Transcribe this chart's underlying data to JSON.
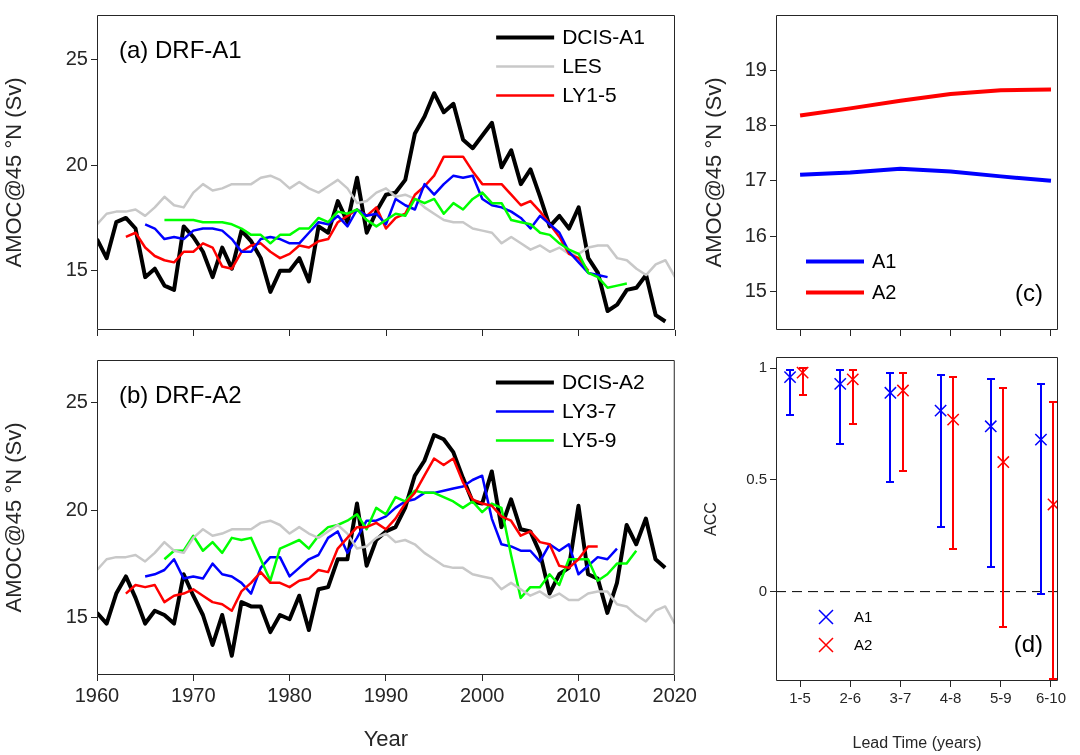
{
  "chart_data": [
    {
      "type": "line",
      "title": "(a) DRF-A1",
      "ylabel": "AMOC@45 °N (Sv)",
      "xlim": [
        1960,
        2020
      ],
      "xticks": [
        1960,
        1970,
        1980,
        1990,
        2000,
        2010,
        2020
      ],
      "ylim": [
        12.2,
        27.1
      ],
      "yticks": [
        15,
        20,
        25
      ],
      "tick_labels": "y",
      "legend": "top right",
      "x": [
        1960,
        1961,
        1962,
        1963,
        1964,
        1965,
        1966,
        1967,
        1968,
        1969,
        1970,
        1971,
        1972,
        1973,
        1974,
        1975,
        1976,
        1977,
        1978,
        1979,
        1980,
        1981,
        1982,
        1983,
        1984,
        1985,
        1986,
        1987,
        1988,
        1989,
        1990,
        1991,
        1992,
        1993,
        1994,
        1995,
        1996,
        1997,
        1998,
        1999,
        2000,
        2001,
        2002,
        2003,
        2004,
        2005,
        2006,
        2007,
        2008,
        2009,
        2010,
        2011,
        2012,
        2013,
        2014,
        2015,
        2016,
        2017,
        2018,
        2019,
        2020
      ],
      "series": [
        {
          "name": "DCIS-A1",
          "color": "#000000",
          "values": [
            16.5,
            15.6,
            17.3,
            17.5,
            17.0,
            14.7,
            15.1,
            14.3,
            14.1,
            17.1,
            16.6,
            15.9,
            14.7,
            16.1,
            15.1,
            16.9,
            16.4,
            15.6,
            14.0,
            15.0,
            15.0,
            15.6,
            14.5,
            17.1,
            16.8,
            18.3,
            17.3,
            19.4,
            16.8,
            17.8,
            18.6,
            18.7,
            19.3,
            21.5,
            22.3,
            23.4,
            22.5,
            22.9,
            21.2,
            20.8,
            21.4,
            22.0,
            19.9,
            20.7,
            19.1,
            19.8,
            18.5,
            17.1,
            17.6,
            17.0,
            18.0,
            15.6,
            14.9,
            13.1,
            13.4,
            14.1,
            14.2,
            14.8,
            12.9,
            12.6,
            null
          ]
        },
        {
          "name": "LES",
          "color": "#c8c8c8",
          "values": [
            17.2,
            17.7,
            17.8,
            17.8,
            17.9,
            17.6,
            18.0,
            18.5,
            18.1,
            18.0,
            18.7,
            19.1,
            18.8,
            18.9,
            19.1,
            19.1,
            19.1,
            19.4,
            19.5,
            19.3,
            18.9,
            19.2,
            18.9,
            18.7,
            19.0,
            19.3,
            18.9,
            18.2,
            18.3,
            18.7,
            18.9,
            18.5,
            18.6,
            18.4,
            18.0,
            17.7,
            17.4,
            17.3,
            17.3,
            17.0,
            16.9,
            16.8,
            16.3,
            16.6,
            16.3,
            16.0,
            16.2,
            15.9,
            16.1,
            15.8,
            15.8,
            16.1,
            16.2,
            16.2,
            15.6,
            15.5,
            15.1,
            14.8,
            15.3,
            15.5,
            14.7
          ]
        },
        {
          "name": "LY1-5",
          "color": "#ff0000",
          "values": [
            null,
            null,
            null,
            16.6,
            16.8,
            16.1,
            15.7,
            15.5,
            15.4,
            15.9,
            15.9,
            16.3,
            16.1,
            15.2,
            15.1,
            15.9,
            16.2,
            16.3,
            15.9,
            15.6,
            15.8,
            16.2,
            16.1,
            16.4,
            16.5,
            17.3,
            17.6,
            17.9,
            17.6,
            18.0,
            17.0,
            17.5,
            17.7,
            18.6,
            19.0,
            19.5,
            20.4,
            20.4,
            20.4,
            19.7,
            19.1,
            19.1,
            19.1,
            18.6,
            18.1,
            18.3,
            17.8,
            17.2,
            16.6,
            15.8,
            15.6,
            15.0,
            null,
            null,
            null,
            null,
            null,
            null,
            null,
            null,
            null
          ]
        },
        {
          "color": "#0000ff",
          "values": [
            null,
            null,
            null,
            null,
            null,
            17.2,
            17.0,
            16.5,
            16.6,
            16.5,
            16.9,
            17.0,
            17.0,
            16.9,
            16.5,
            15.9,
            15.9,
            16.5,
            16.6,
            16.5,
            16.3,
            16.3,
            16.8,
            17.3,
            17.2,
            17.6,
            17.1,
            17.9,
            17.6,
            17.7,
            17.2,
            18.4,
            18.1,
            17.9,
            19.1,
            18.6,
            19.1,
            19.5,
            19.4,
            19.5,
            18.4,
            18.1,
            18.0,
            17.8,
            17.5,
            17.0,
            17.6,
            17.2,
            16.8,
            15.9,
            15.4,
            14.9,
            14.8,
            14.7,
            null,
            null,
            null,
            null,
            null,
            null,
            null
          ]
        },
        {
          "color": "#00ff00",
          "values": [
            null,
            null,
            null,
            null,
            null,
            null,
            null,
            17.4,
            17.4,
            17.4,
            17.4,
            17.3,
            17.3,
            17.3,
            17.2,
            17.0,
            16.7,
            16.7,
            16.3,
            16.7,
            16.7,
            17.0,
            17.0,
            17.5,
            17.3,
            17.8,
            17.7,
            17.9,
            17.4,
            17.1,
            17.4,
            17.7,
            17.6,
            18.4,
            18.2,
            18.4,
            17.7,
            18.2,
            17.9,
            18.4,
            18.7,
            18.2,
            18.2,
            17.4,
            17.3,
            17.2,
            16.8,
            16.7,
            16.3,
            16.0,
            15.8,
            14.9,
            14.7,
            14.2,
            14.3,
            14.4,
            null,
            null,
            null,
            null,
            null
          ]
        }
      ]
    },
    {
      "type": "line",
      "title": "(b) DRF-A2",
      "xlabel": "Year",
      "ylabel": "AMOC@45 °N (Sv)",
      "xlim": [
        1960,
        2020
      ],
      "xticks": [
        1960,
        1970,
        1980,
        1990,
        2000,
        2010,
        2020
      ],
      "ylim": [
        12.3,
        27.0
      ],
      "yticks": [
        15,
        20,
        25
      ],
      "legend": "top right",
      "x": [
        1960,
        1961,
        1962,
        1963,
        1964,
        1965,
        1966,
        1967,
        1968,
        1969,
        1970,
        1971,
        1972,
        1973,
        1974,
        1975,
        1976,
        1977,
        1978,
        1979,
        1980,
        1981,
        1982,
        1983,
        1984,
        1985,
        1986,
        1987,
        1988,
        1989,
        1990,
        1991,
        1992,
        1993,
        1994,
        1995,
        1996,
        1997,
        1998,
        1999,
        2000,
        2001,
        2002,
        2003,
        2004,
        2005,
        2006,
        2007,
        2008,
        2009,
        2010,
        2011,
        2012,
        2013,
        2014,
        2015,
        2016,
        2017,
        2018,
        2019,
        2020
      ],
      "series": [
        {
          "name": "DCIS-A2",
          "color": "#000000",
          "values": [
            15.2,
            14.7,
            16.1,
            16.9,
            15.9,
            14.7,
            15.3,
            15.1,
            14.7,
            17.0,
            16.0,
            15.1,
            13.7,
            15.1,
            13.2,
            15.7,
            15.5,
            15.5,
            14.3,
            15.1,
            14.9,
            16.0,
            14.4,
            16.3,
            16.4,
            17.7,
            17.7,
            20.3,
            17.4,
            18.6,
            19.0,
            19.2,
            20.1,
            21.6,
            22.3,
            23.5,
            23.3,
            22.7,
            21.5,
            20.4,
            20.3,
            21.8,
            19.2,
            20.5,
            19.1,
            19.0,
            18.0,
            16.1,
            17.0,
            17.3,
            20.2,
            17.0,
            16.8,
            15.2,
            16.6,
            19.3,
            18.4,
            19.6,
            17.7,
            17.3,
            null
          ]
        },
        {
          "name": "LY3-7",
          "color": "#0000ff",
          "values": [
            null,
            null,
            null,
            null,
            null,
            16.9,
            17.0,
            17.2,
            17.7,
            16.8,
            16.9,
            16.8,
            17.5,
            17.0,
            16.9,
            16.6,
            16.1,
            17.3,
            17.8,
            17.8,
            16.9,
            17.3,
            17.7,
            17.9,
            18.7,
            19.0,
            18.0,
            18.7,
            19.5,
            19.5,
            19.7,
            20.1,
            20.4,
            20.5,
            20.8,
            20.8,
            20.9,
            21.0,
            21.1,
            21.4,
            21.6,
            19.6,
            18.4,
            18.3,
            18.1,
            18.1,
            17.6,
            18.4,
            18.1,
            18.4,
            17.0,
            17.4,
            17.8,
            17.7,
            18.2,
            null,
            null,
            null,
            null,
            null,
            null
          ]
        },
        {
          "name": "LY5-9",
          "color": "#00ff00",
          "values": [
            null,
            null,
            null,
            null,
            null,
            null,
            null,
            17.7,
            18.1,
            18.1,
            18.8,
            18.1,
            18.5,
            18.0,
            18.7,
            18.6,
            18.7,
            17.7,
            16.7,
            18.2,
            18.4,
            18.6,
            18.2,
            18.8,
            19.2,
            19.3,
            19.5,
            19.8,
            19.1,
            20.1,
            19.8,
            20.6,
            20.4,
            20.9,
            20.8,
            20.8,
            20.6,
            20.4,
            20.1,
            20.4,
            19.9,
            20.3,
            20.1,
            17.9,
            15.9,
            16.4,
            16.4,
            17.0,
            16.5,
            17.7,
            17.7,
            17.7,
            16.7,
            17.0,
            17.5,
            17.5,
            18.1,
            null,
            null,
            null,
            null
          ]
        },
        {
          "color": "#c8c8c8",
          "values": [
            17.2,
            17.7,
            17.8,
            17.8,
            17.9,
            17.6,
            18.0,
            18.5,
            18.1,
            18.0,
            18.7,
            19.1,
            18.8,
            18.9,
            19.1,
            19.1,
            19.1,
            19.4,
            19.5,
            19.3,
            18.9,
            19.2,
            18.9,
            18.7,
            19.0,
            19.3,
            18.9,
            18.2,
            18.3,
            18.7,
            18.9,
            18.5,
            18.6,
            18.4,
            18.0,
            17.7,
            17.4,
            17.3,
            17.3,
            17.0,
            16.9,
            16.8,
            16.3,
            16.6,
            16.3,
            16.0,
            16.2,
            15.9,
            16.1,
            15.8,
            15.8,
            16.1,
            16.2,
            16.2,
            15.6,
            15.5,
            15.1,
            14.8,
            15.3,
            15.5,
            14.7
          ]
        },
        {
          "color": "#ff0000",
          "values": [
            null,
            null,
            null,
            16.1,
            16.5,
            16.4,
            16.5,
            15.7,
            16.0,
            16.1,
            16.3,
            16.0,
            15.7,
            15.6,
            15.3,
            16.2,
            16.6,
            17.1,
            16.6,
            16.6,
            16.4,
            16.7,
            16.8,
            17.2,
            17.1,
            18.2,
            18.7,
            19.2,
            19.2,
            19.4,
            19.1,
            19.6,
            20.3,
            20.8,
            21.6,
            22.4,
            22.1,
            22.4,
            21.3,
            20.5,
            20.3,
            20.2,
            19.7,
            19.5,
            18.8,
            19.0,
            18.5,
            18.4,
            17.4,
            17.3,
            17.7,
            18.3,
            18.3,
            null,
            null,
            null,
            null,
            null,
            null,
            null,
            null
          ]
        }
      ]
    },
    {
      "type": "line",
      "title": "(c)",
      "ylabel": "AMOC@45 °N (Sv)",
      "categories": [
        null,
        null,
        null,
        null,
        null,
        null
      ],
      "ylim": [
        14.3,
        20
      ],
      "yticks": [
        15,
        16,
        17,
        18,
        19
      ],
      "tick_labels": "y",
      "legend": "bottom left",
      "series": [
        {
          "name": "A1",
          "color": "#0000ff",
          "values": [
            17.11,
            17.15,
            17.22,
            17.17,
            17.08,
            17.0
          ]
        },
        {
          "name": "A2",
          "color": "#ff0000",
          "values": [
            18.18,
            18.31,
            18.45,
            18.57,
            18.64,
            18.65
          ]
        }
      ]
    },
    {
      "type": "scatter",
      "title": "(d)",
      "xlabel": "Lead Time (years)",
      "ylabel": "ACC",
      "categories": [
        "1-5",
        "2-6",
        "3-7",
        "4-8",
        "5-9",
        "6-10"
      ],
      "ylim": [
        -0.4,
        1.05
      ],
      "yticks": [
        0,
        0.5,
        1
      ],
      "legend": "bottom left",
      "marker": "cross",
      "ref_lines": [
        {
          "axis": "y",
          "value": 0,
          "color": "#000000",
          "line_style": "dashed"
        }
      ],
      "series": [
        {
          "name": "A1",
          "color": "#0000ff",
          "values": [
            0.96,
            0.93,
            0.89,
            0.81,
            0.74,
            0.68
          ],
          "errors": [
            [
              0.79,
              0.99
            ],
            [
              0.66,
              0.99
            ],
            [
              0.49,
              0.98
            ],
            [
              0.29,
              0.97
            ],
            [
              0.11,
              0.95
            ],
            [
              -0.01,
              0.93
            ]
          ]
        },
        {
          "name": "A2",
          "color": "#ff0000",
          "values": [
            0.98,
            0.95,
            0.9,
            0.77,
            0.58,
            0.39
          ],
          "errors": [
            [
              0.88,
              1.0
            ],
            [
              0.75,
              0.99
            ],
            [
              0.54,
              0.98
            ],
            [
              0.19,
              0.96
            ],
            [
              -0.16,
              0.91
            ],
            [
              -0.39,
              0.85
            ]
          ]
        }
      ]
    }
  ]
}
